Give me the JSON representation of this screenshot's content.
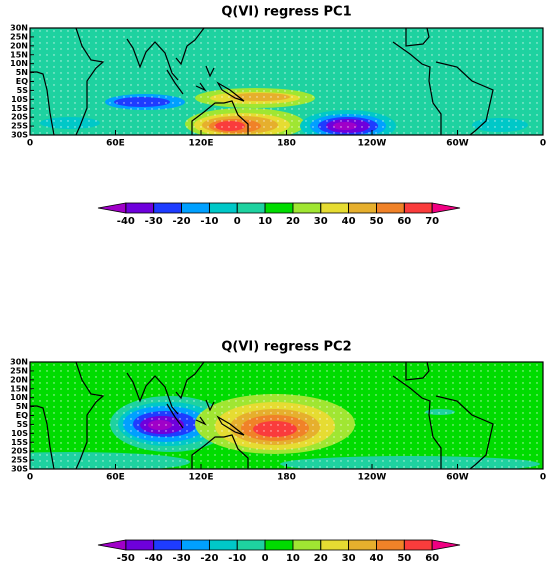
{
  "panels": [
    {
      "title": "Q(VI) regress PC1",
      "lat_labels": [
        "30N",
        "25N",
        "20N",
        "15N",
        "10N",
        "5N",
        "EQ",
        "5S",
        "10S",
        "15S",
        "20S",
        "25S",
        "30S"
      ],
      "lon_labels": [
        "0",
        "60E",
        "120E",
        "180",
        "120W",
        "60W",
        "0"
      ],
      "colorbar_ticks": [
        -40,
        -30,
        -20,
        -10,
        0,
        10,
        20,
        30,
        40,
        50,
        60,
        70
      ],
      "colorbar_colors": [
        "#a000c8",
        "#6e00dc",
        "#1e3cff",
        "#00a0ff",
        "#00c8c8",
        "#1ed2a0",
        "#00dc00",
        "#a0e632",
        "#e6dc32",
        "#e6af2d",
        "#f08228",
        "#fa3c3c",
        "#f00082"
      ]
    },
    {
      "title": "Q(VI) regress PC2",
      "lat_labels": [
        "30N",
        "25N",
        "20N",
        "15N",
        "10N",
        "5N",
        "EQ",
        "5S",
        "10S",
        "15S",
        "20S",
        "25S",
        "30S"
      ],
      "lon_labels": [
        "0",
        "60E",
        "120E",
        "180",
        "120W",
        "60W",
        "0"
      ],
      "colorbar_ticks": [
        -50,
        -40,
        -30,
        -20,
        -10,
        0,
        10,
        20,
        30,
        40,
        50,
        60
      ],
      "colorbar_colors": [
        "#a000c8",
        "#6e00dc",
        "#1e3cff",
        "#00a0ff",
        "#00c8c8",
        "#1ed2a0",
        "#00dc00",
        "#a0e632",
        "#e6dc32",
        "#e6af2d",
        "#f08228",
        "#fa3c3c",
        "#f00082"
      ]
    }
  ]
}
